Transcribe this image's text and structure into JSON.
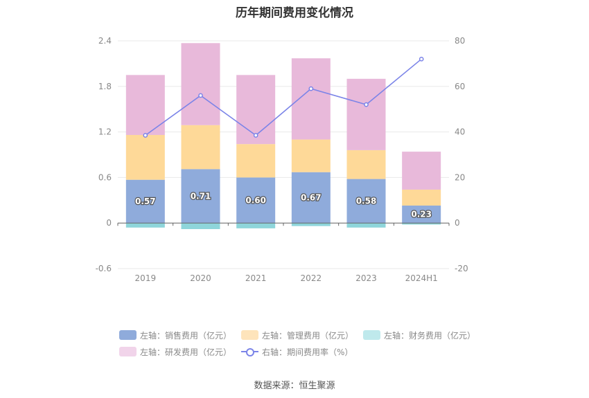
{
  "chart_data": {
    "type": "bar",
    "title": "历年期间费用变化情况",
    "categories": [
      "2019",
      "2020",
      "2021",
      "2022",
      "2023",
      "2024H1"
    ],
    "left_axis": {
      "ticks": [
        "-0.6",
        "0",
        "0.6",
        "1.2",
        "1.8",
        "2.4"
      ],
      "ylim": [
        -0.6,
        2.4
      ]
    },
    "right_axis": {
      "ticks": [
        "-20",
        "0",
        "20",
        "40",
        "60",
        "80"
      ],
      "ylim": [
        -20,
        80
      ]
    },
    "series": [
      {
        "name": "左轴：销售费用（亿元）",
        "axis": "left",
        "stack": true,
        "color": "#8fabdb",
        "values": [
          0.57,
          0.71,
          0.6,
          0.67,
          0.58,
          0.23
        ]
      },
      {
        "name": "左轴：管理费用（亿元）",
        "axis": "left",
        "stack": true,
        "color": "#fed998",
        "values": [
          0.59,
          0.58,
          0.44,
          0.43,
          0.38,
          0.21
        ]
      },
      {
        "name": "左轴：财务费用（亿元）",
        "axis": "left",
        "stack": true,
        "color": "#8ed5da",
        "values": [
          -0.06,
          -0.08,
          -0.07,
          -0.04,
          -0.06,
          -0.02
        ]
      },
      {
        "name": "左轴：研发费用（亿元）",
        "axis": "left",
        "stack": true,
        "color": "#e8b9da",
        "values": [
          0.79,
          1.08,
          0.91,
          1.07,
          0.94,
          0.5
        ]
      },
      {
        "name": "右轴：期间费用率（%）",
        "axis": "right",
        "type": "line",
        "color": "#7b84e8",
        "values": [
          38.5,
          56.0,
          38.5,
          59.0,
          52.0,
          72.0
        ]
      }
    ],
    "bar_labels": [
      "0.57",
      "0.71",
      "0.60",
      "0.67",
      "0.58",
      "0.23"
    ],
    "grid": true,
    "legend_position": "bottom"
  },
  "legend": {
    "row1": [
      "左轴：销售费用（亿元）",
      "左轴：管理费用（亿元）",
      "左轴：财务费用（亿元）"
    ],
    "row2": [
      "左轴：研发费用（亿元）",
      "右轴：期间费用率（%）"
    ],
    "colors": [
      "#8fabdb",
      "#fee4bb",
      "#bfe9ec",
      "#f1d4ea"
    ]
  },
  "source": "数据来源：恒生聚源"
}
